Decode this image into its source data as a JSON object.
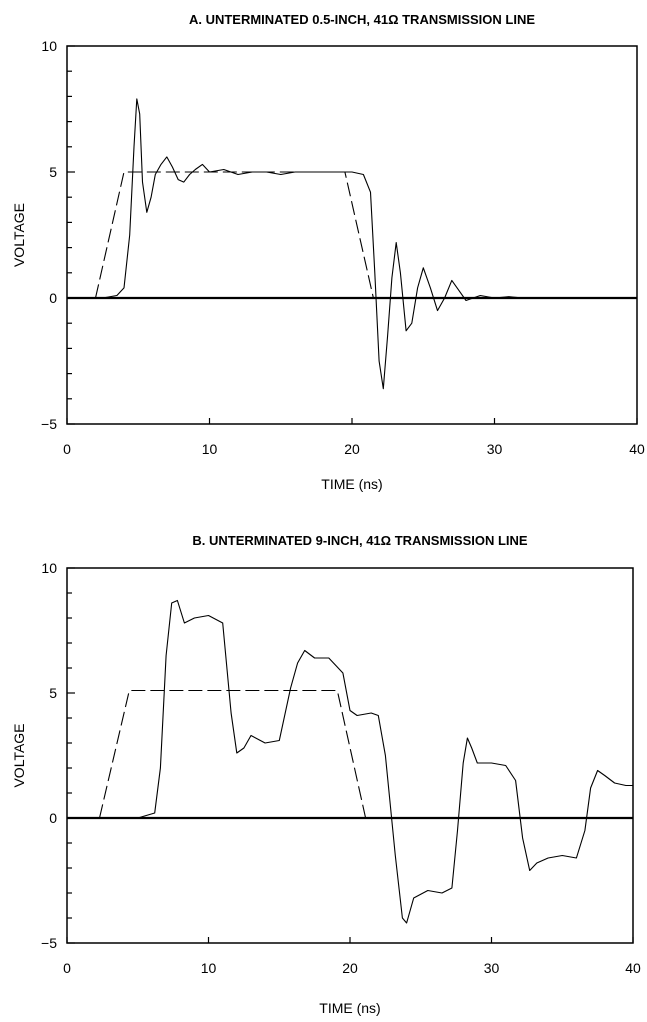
{
  "chart_data": [
    {
      "type": "line",
      "title": "A. UNTERMINATED 0.5-INCH, 41Ω TRANSMISSION LINE",
      "xlabel": "TIME (ns)",
      "ylabel": "VOLTAGE",
      "xlim": [
        0,
        40
      ],
      "ylim": [
        -5,
        10
      ],
      "xticks": [
        "0",
        "10",
        "20",
        "30",
        "40"
      ],
      "yticks": [
        "10",
        "5",
        "0",
        "−5"
      ],
      "grid": false,
      "legend": "none",
      "zero_line": true,
      "series": [
        {
          "style": "dashed",
          "x": [
            2,
            4,
            19.5,
            21.5,
            40
          ],
          "y": [
            0,
            5,
            5,
            0,
            0
          ]
        },
        {
          "style": "solid",
          "x": [
            0,
            2.5,
            3.5,
            4.0,
            4.4,
            4.7,
            4.9,
            5.1,
            5.3,
            5.6,
            5.9,
            6.2,
            6.6,
            7.0,
            7.4,
            7.8,
            8.2,
            8.6,
            9.0,
            9.5,
            10,
            11,
            12,
            13,
            14,
            15,
            16,
            17,
            18,
            19,
            20,
            20.8,
            21.3,
            21.6,
            21.9,
            22.2,
            22.5,
            22.8,
            23.1,
            23.4,
            23.8,
            24.2,
            24.6,
            25.0,
            25.5,
            26.0,
            26.5,
            27.0,
            27.5,
            28.0,
            29,
            30,
            31,
            32,
            34,
            36,
            38,
            40
          ],
          "y": [
            0,
            0,
            0.1,
            0.4,
            2.5,
            6.0,
            7.9,
            7.3,
            4.6,
            3.4,
            4.0,
            4.9,
            5.3,
            5.6,
            5.2,
            4.7,
            4.6,
            4.9,
            5.1,
            5.3,
            5.0,
            5.1,
            4.9,
            5.0,
            5.0,
            4.9,
            5.0,
            5.0,
            5.0,
            5.0,
            5.0,
            4.9,
            4.2,
            1.0,
            -2.5,
            -3.6,
            -1.5,
            0.8,
            2.2,
            1.0,
            -1.3,
            -1.0,
            0.4,
            1.2,
            0.4,
            -0.5,
            0.0,
            0.7,
            0.3,
            -0.1,
            0.1,
            0.0,
            0.05,
            0.0,
            0.0,
            0.0,
            0.0,
            0.0
          ]
        }
      ]
    },
    {
      "type": "line",
      "title": "B.  UNTERMINATED 9-INCH, 41Ω TRANSMISSION LINE",
      "xlabel": "TIME (ns)",
      "ylabel": "VOLTAGE",
      "xlim": [
        0,
        40
      ],
      "ylim": [
        -5,
        10
      ],
      "xticks": [
        "0",
        "10",
        "20",
        "30",
        "40"
      ],
      "yticks": [
        "10",
        "5",
        "0",
        "−5"
      ],
      "grid": false,
      "legend": "none",
      "zero_line": true,
      "series": [
        {
          "style": "dashed",
          "x": [
            2.3,
            4.4,
            19.1,
            21.1,
            40
          ],
          "y": [
            0,
            5.1,
            5.1,
            0,
            0
          ]
        },
        {
          "style": "solid",
          "x": [
            0,
            5.0,
            6.2,
            6.6,
            7.0,
            7.4,
            7.8,
            8.3,
            9.0,
            10,
            11,
            11.6,
            12.0,
            12.5,
            13.0,
            14,
            15,
            15.8,
            16.3,
            16.8,
            17.5,
            18.5,
            19.5,
            20.0,
            20.5,
            21.5,
            22.0,
            22.5,
            23.2,
            23.7,
            24.0,
            24.5,
            25.5,
            26.5,
            27.2,
            27.6,
            28.0,
            28.3,
            28.6,
            29.0,
            30,
            31,
            31.7,
            32.2,
            32.7,
            33.2,
            34,
            35,
            36,
            36.6,
            37.0,
            37.5,
            38.0,
            38.7,
            39.5,
            40
          ],
          "y": [
            0,
            0,
            0.2,
            2.0,
            6.5,
            8.6,
            8.7,
            7.8,
            8.0,
            8.1,
            7.8,
            4.2,
            2.6,
            2.8,
            3.3,
            3.0,
            3.1,
            5.2,
            6.2,
            6.7,
            6.4,
            6.4,
            5.8,
            4.3,
            4.1,
            4.2,
            4.1,
            2.5,
            -1.5,
            -4.0,
            -4.2,
            -3.2,
            -2.9,
            -3.0,
            -2.8,
            -0.5,
            2.2,
            3.2,
            2.8,
            2.2,
            2.2,
            2.1,
            1.5,
            -0.8,
            -2.1,
            -1.8,
            -1.6,
            -1.5,
            -1.6,
            -0.5,
            1.2,
            1.9,
            1.7,
            1.4,
            1.3,
            1.3
          ]
        }
      ]
    }
  ]
}
